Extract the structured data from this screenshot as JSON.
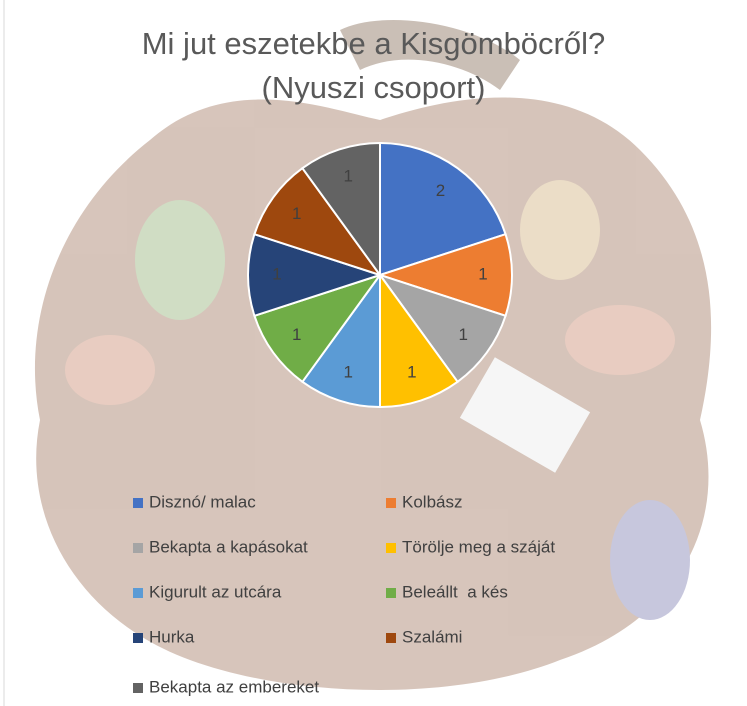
{
  "chart_data": {
    "type": "pie",
    "title": "Mi jut eszetekbe a Kisgömböcről?\n(Nyuszi csoport)",
    "categories": [
      "Disznó/ malac",
      "Kolbász",
      "Bekapta a kapásokat",
      "Törölje meg a száját",
      "Kigurult az utcára",
      "Beleállt  a kés",
      "Hurka",
      "Szalámi",
      "Bekapta az embereket"
    ],
    "values": [
      2,
      1,
      1,
      1,
      1,
      1,
      1,
      1,
      1
    ],
    "colors": [
      "#4472c4",
      "#ed7d31",
      "#a5a5a5",
      "#ffc000",
      "#5b9bd5",
      "#70ad47",
      "#264478",
      "#9e480e",
      "#636363"
    ]
  }
}
